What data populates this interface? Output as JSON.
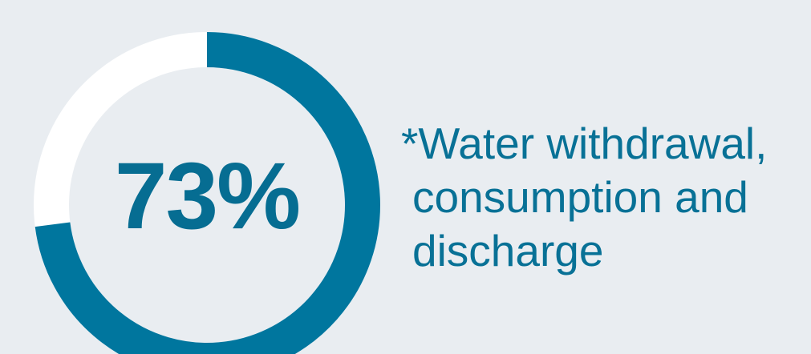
{
  "top_partial_text": "",
  "chart_data": {
    "type": "pie",
    "value": 73,
    "value_label": "73%",
    "segments": [
      {
        "value": 73,
        "color": "#00769e"
      },
      {
        "value": 27,
        "color": "#ffffff"
      }
    ]
  },
  "note": {
    "line1": "*Water withdrawal,",
    "line2": "consumption and",
    "line3": "discharge"
  }
}
